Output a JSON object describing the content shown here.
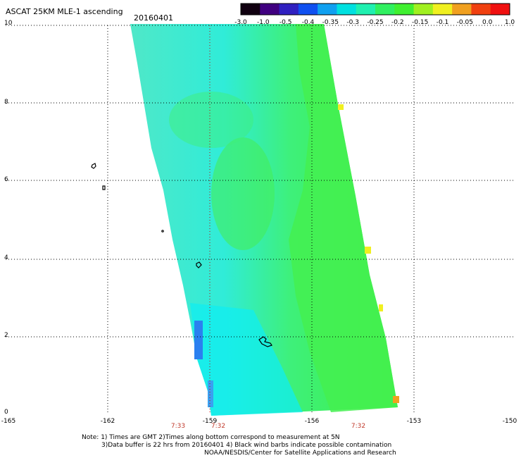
{
  "header": {
    "title": "ASCAT 25KM MLE-1 ascending",
    "date": "20160401"
  },
  "colorbar": {
    "labels": [
      "-3.0",
      "-1.0",
      "-0.5",
      "-0.4",
      "-0.35",
      "-0.3",
      "-0.25",
      "-0.2",
      "-0.15",
      "-0.1",
      "-0.05",
      "0.0",
      "1.0"
    ],
    "colors": [
      "#100010",
      "#400080",
      "#3020c0",
      "#1050f0",
      "#10a0f0",
      "#00e0e0",
      "#20f0b0",
      "#30f060",
      "#40f030",
      "#a0f020",
      "#f0f020",
      "#f0a020",
      "#f04010",
      "#f01010"
    ]
  },
  "axes": {
    "y_ticks": [
      "0",
      "2",
      "4",
      "6",
      "8",
      "10"
    ],
    "x_ticks": [
      "-165",
      "-162",
      "-159",
      "-156",
      "-153",
      "-150"
    ]
  },
  "time_labels": [
    "7:33",
    "7:32",
    "7:32"
  ],
  "notes": {
    "line1": "Note: 1) Times are GMT 2)Times along bottom correspond to measurement at 5N",
    "line2": "3)Data buffer is 22 hrs from 20160401 4) Black wind barbs indicate possible contamination",
    "line3": "NOAA/NESDIS/Center for Satellite Applications and Research"
  }
}
